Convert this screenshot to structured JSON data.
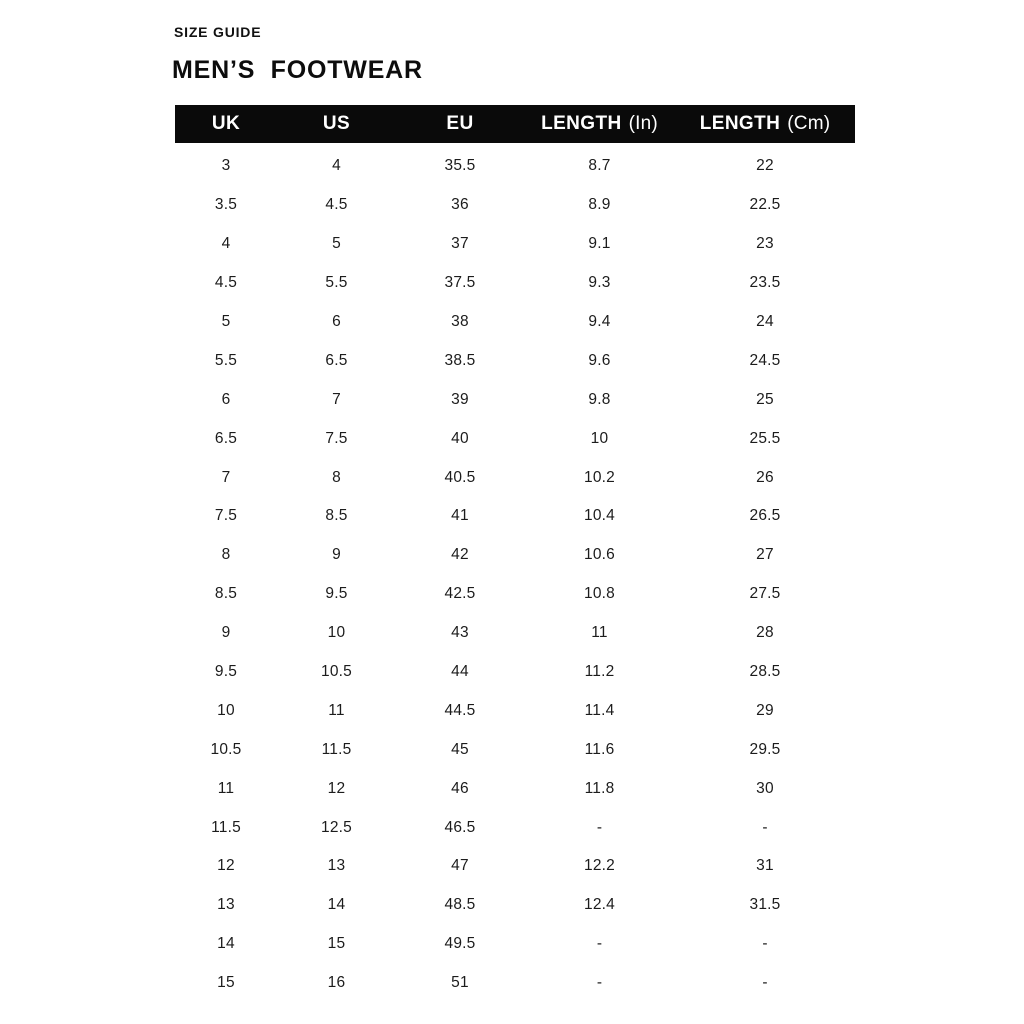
{
  "page": {
    "eyebrow": "SIZE GUIDE",
    "title": "MEN’S  FOOTWEAR"
  },
  "colors": {
    "page_bg": "#ffffff",
    "header_bar_bg": "#0a0a0a",
    "header_text": "#ffffff",
    "body_text": "#1c1c1c"
  },
  "table": {
    "columns": [
      {
        "label": "UK",
        "unit": ""
      },
      {
        "label": "US",
        "unit": ""
      },
      {
        "label": "EU",
        "unit": ""
      },
      {
        "label": "LENGTH",
        "unit": "(In)"
      },
      {
        "label": "LENGTH",
        "unit": "(Cm)"
      }
    ],
    "rows": [
      [
        "3",
        "4",
        "35.5",
        "8.7",
        "22"
      ],
      [
        "3.5",
        "4.5",
        "36",
        "8.9",
        "22.5"
      ],
      [
        "4",
        "5",
        "37",
        "9.1",
        "23"
      ],
      [
        "4.5",
        "5.5",
        "37.5",
        "9.3",
        "23.5"
      ],
      [
        "5",
        "6",
        "38",
        "9.4",
        "24"
      ],
      [
        "5.5",
        "6.5",
        "38.5",
        "9.6",
        "24.5"
      ],
      [
        "6",
        "7",
        "39",
        "9.8",
        "25"
      ],
      [
        "6.5",
        "7.5",
        "40",
        "10",
        "25.5"
      ],
      [
        "7",
        "8",
        "40.5",
        "10.2",
        "26"
      ],
      [
        "7.5",
        "8.5",
        "41",
        "10.4",
        "26.5"
      ],
      [
        "8",
        "9",
        "42",
        "10.6",
        "27"
      ],
      [
        "8.5",
        "9.5",
        "42.5",
        "10.8",
        "27.5"
      ],
      [
        "9",
        "10",
        "43",
        "11",
        "28"
      ],
      [
        "9.5",
        "10.5",
        "44",
        "11.2",
        "28.5"
      ],
      [
        "10",
        "11",
        "44.5",
        "11.4",
        "29"
      ],
      [
        "10.5",
        "11.5",
        "45",
        "11.6",
        "29.5"
      ],
      [
        "11",
        "12",
        "46",
        "11.8",
        "30"
      ],
      [
        "11.5",
        "12.5",
        "46.5",
        "-",
        "-"
      ],
      [
        "12",
        "13",
        "47",
        "12.2",
        "31"
      ],
      [
        "13",
        "14",
        "48.5",
        "12.4",
        "31.5"
      ],
      [
        "14",
        "15",
        "49.5",
        "-",
        "-"
      ],
      [
        "15",
        "16",
        "51",
        "-",
        "-"
      ]
    ]
  }
}
